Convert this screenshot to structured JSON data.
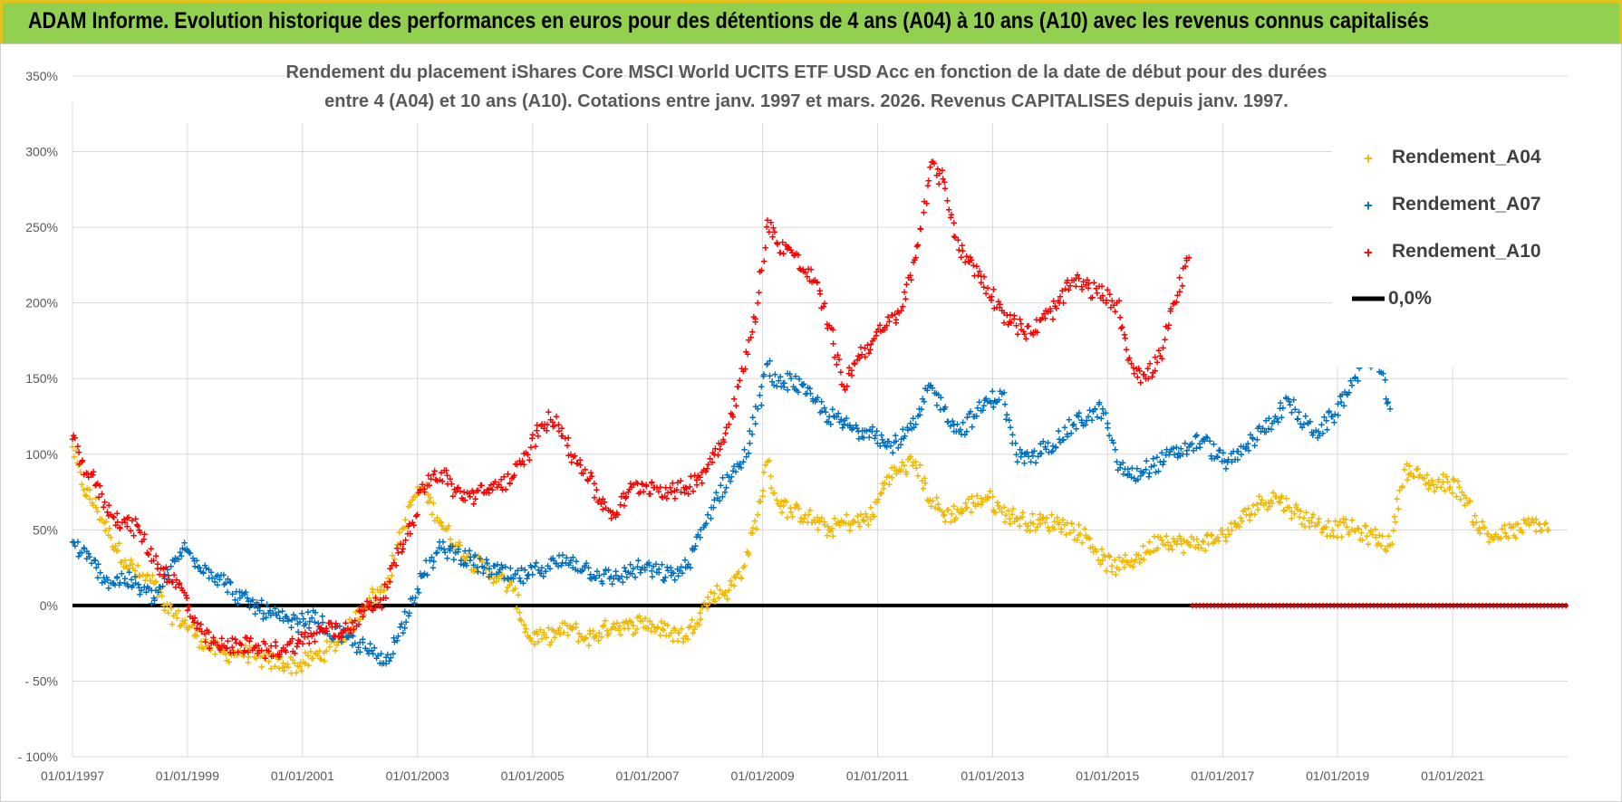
{
  "banner": {
    "text": "ADAM Informe. Evolution historique des performances en euros pour des détentions de 4 ans (A04) à 10 ans (A10) avec les revenus connus capitalisés",
    "background": "#92d050",
    "border": "#e7c21c"
  },
  "chart_data": {
    "type": "scatter",
    "title_line1": "Rendement du placement iShares Core MSCI World UCITS ETF USD Acc en fonction de la date de début pour des durées",
    "title_line2": "entre 4 (A04) et 10 ans (A10). Cotations entre janv. 1997 et mars. 2026. Revenus CAPITALISES depuis janv. 1997.",
    "xlabel": "",
    "ylabel": "",
    "x_range": [
      "01/01/1997",
      "01/01/2023"
    ],
    "x_ticks": [
      "01/01/1997",
      "01/01/1999",
      "01/01/2001",
      "01/01/2003",
      "01/01/2005",
      "01/01/2007",
      "01/01/2009",
      "01/01/2011",
      "01/01/2013",
      "01/01/2015",
      "01/01/2017",
      "01/01/2019",
      "01/01/2021"
    ],
    "ylim": [
      -100,
      350
    ],
    "y_ticks": [
      "350%",
      "300%",
      "250%",
      "200%",
      "150%",
      "100%",
      "50%",
      "0%",
      "- 50%",
      "- 100%"
    ],
    "grid": true,
    "legend_position": "top-right",
    "series": [
      {
        "name": "Rendement_A04",
        "color": "#f2b800",
        "marker": "+",
        "points": [
          [
            "1997-01",
            105
          ],
          [
            "1997-03",
            80
          ],
          [
            "1997-06",
            65
          ],
          [
            "1997-09",
            45
          ],
          [
            "1997-12",
            30
          ],
          [
            "1998-03",
            20
          ],
          [
            "1998-06",
            15
          ],
          [
            "1998-09",
            -5
          ],
          [
            "1998-12",
            -10
          ],
          [
            "1999-03",
            -20
          ],
          [
            "1999-06",
            -28
          ],
          [
            "1999-09",
            -32
          ],
          [
            "1999-12",
            -30
          ],
          [
            "2000-03",
            -34
          ],
          [
            "2000-06",
            -37
          ],
          [
            "2000-09",
            -38
          ],
          [
            "2000-12",
            -40
          ],
          [
            "2001-03",
            -35
          ],
          [
            "2001-06",
            -30
          ],
          [
            "2001-09",
            -22
          ],
          [
            "2001-12",
            -10
          ],
          [
            "2002-03",
            5
          ],
          [
            "2002-06",
            10
          ],
          [
            "2002-09",
            40
          ],
          [
            "2002-12",
            70
          ],
          [
            "2003-02",
            78
          ],
          [
            "2003-06",
            55
          ],
          [
            "2003-09",
            40
          ],
          [
            "2003-12",
            30
          ],
          [
            "2004-03",
            25
          ],
          [
            "2004-06",
            18
          ],
          [
            "2004-09",
            10
          ],
          [
            "2004-12",
            -20
          ],
          [
            "2005-03",
            -22
          ],
          [
            "2005-06",
            -18
          ],
          [
            "2005-09",
            -15
          ],
          [
            "2005-12",
            -22
          ],
          [
            "2006-03",
            -18
          ],
          [
            "2006-06",
            -12
          ],
          [
            "2006-09",
            -15
          ],
          [
            "2006-12",
            -10
          ],
          [
            "2007-03",
            -15
          ],
          [
            "2007-06",
            -18
          ],
          [
            "2007-09",
            -20
          ],
          [
            "2007-12",
            -5
          ],
          [
            "2008-03",
            8
          ],
          [
            "2008-06",
            10
          ],
          [
            "2008-09",
            25
          ],
          [
            "2008-12",
            60
          ],
          [
            "2009-02",
            95
          ],
          [
            "2009-04",
            70
          ],
          [
            "2009-07",
            62
          ],
          [
            "2009-10",
            60
          ],
          [
            "2009-12",
            55
          ],
          [
            "2010-03",
            50
          ],
          [
            "2010-06",
            55
          ],
          [
            "2010-09",
            55
          ],
          [
            "2010-12",
            60
          ],
          [
            "2011-03",
            85
          ],
          [
            "2011-06",
            90
          ],
          [
            "2011-09",
            95
          ],
          [
            "2011-12",
            70
          ],
          [
            "2012-03",
            60
          ],
          [
            "2012-06",
            62
          ],
          [
            "2012-09",
            68
          ],
          [
            "2012-12",
            72
          ],
          [
            "2013-03",
            62
          ],
          [
            "2013-06",
            58
          ],
          [
            "2013-09",
            55
          ],
          [
            "2013-12",
            55
          ],
          [
            "2014-03",
            55
          ],
          [
            "2014-06",
            50
          ],
          [
            "2014-09",
            45
          ],
          [
            "2014-12",
            30
          ],
          [
            "2015-03",
            25
          ],
          [
            "2015-06",
            30
          ],
          [
            "2015-09",
            35
          ],
          [
            "2015-12",
            45
          ],
          [
            "2016-03",
            42
          ],
          [
            "2016-06",
            40
          ],
          [
            "2016-09",
            42
          ],
          [
            "2016-12",
            45
          ],
          [
            "2017-03",
            50
          ],
          [
            "2017-06",
            60
          ],
          [
            "2017-09",
            68
          ],
          [
            "2017-12",
            72
          ],
          [
            "2018-03",
            65
          ],
          [
            "2018-06",
            58
          ],
          [
            "2018-09",
            55
          ],
          [
            "2018-12",
            50
          ],
          [
            "2019-03",
            52
          ],
          [
            "2019-06",
            48
          ],
          [
            "2019-09",
            45
          ],
          [
            "2019-12",
            40
          ],
          [
            "2020-03",
            90
          ],
          [
            "2020-06",
            85
          ],
          [
            "2020-09",
            80
          ],
          [
            "2020-12",
            82
          ],
          [
            "2021-03",
            75
          ],
          [
            "2021-06",
            55
          ],
          [
            "2021-09",
            45
          ],
          [
            "2021-12",
            48
          ],
          [
            "2022-03",
            50
          ],
          [
            "2022-06",
            55
          ],
          [
            "2022-09",
            50
          ]
        ]
      },
      {
        "name": "Rendement_A07",
        "color": "#0070c0",
        "marker": "+",
        "points": [
          [
            "1997-01",
            42
          ],
          [
            "1997-03",
            35
          ],
          [
            "1997-06",
            25
          ],
          [
            "1997-09",
            15
          ],
          [
            "1997-12",
            18
          ],
          [
            "1998-03",
            12
          ],
          [
            "1998-06",
            5
          ],
          [
            "1998-09",
            20
          ],
          [
            "1998-12",
            38
          ],
          [
            "1999-03",
            30
          ],
          [
            "1999-06",
            22
          ],
          [
            "1999-09",
            15
          ],
          [
            "1999-12",
            5
          ],
          [
            "2000-03",
            0
          ],
          [
            "2000-06",
            -5
          ],
          [
            "2000-09",
            -10
          ],
          [
            "2000-12",
            -12
          ],
          [
            "2001-03",
            -8
          ],
          [
            "2001-06",
            -15
          ],
          [
            "2001-09",
            -20
          ],
          [
            "2001-12",
            -25
          ],
          [
            "2002-03",
            -30
          ],
          [
            "2002-06",
            -38
          ],
          [
            "2002-09",
            -20
          ],
          [
            "2002-12",
            5
          ],
          [
            "2003-02",
            20
          ],
          [
            "2003-06",
            38
          ],
          [
            "2003-09",
            35
          ],
          [
            "2003-12",
            30
          ],
          [
            "2004-03",
            25
          ],
          [
            "2004-06",
            22
          ],
          [
            "2004-09",
            18
          ],
          [
            "2004-12",
            20
          ],
          [
            "2005-03",
            25
          ],
          [
            "2005-06",
            28
          ],
          [
            "2005-09",
            30
          ],
          [
            "2005-12",
            25
          ],
          [
            "2006-03",
            20
          ],
          [
            "2006-06",
            18
          ],
          [
            "2006-09",
            22
          ],
          [
            "2006-12",
            25
          ],
          [
            "2007-03",
            22
          ],
          [
            "2007-06",
            20
          ],
          [
            "2007-09",
            25
          ],
          [
            "2007-12",
            45
          ],
          [
            "2008-03",
            70
          ],
          [
            "2008-06",
            85
          ],
          [
            "2008-09",
            95
          ],
          [
            "2008-12",
            130
          ],
          [
            "2009-02",
            160
          ],
          [
            "2009-04",
            145
          ],
          [
            "2009-07",
            150
          ],
          [
            "2009-10",
            140
          ],
          [
            "2009-12",
            135
          ],
          [
            "2010-03",
            125
          ],
          [
            "2010-06",
            120
          ],
          [
            "2010-09",
            115
          ],
          [
            "2010-12",
            118
          ],
          [
            "2011-03",
            105
          ],
          [
            "2011-06",
            110
          ],
          [
            "2011-09",
            120
          ],
          [
            "2011-12",
            145
          ],
          [
            "2012-03",
            130
          ],
          [
            "2012-06",
            115
          ],
          [
            "2012-09",
            125
          ],
          [
            "2012-12",
            135
          ],
          [
            "2013-03",
            140
          ],
          [
            "2013-06",
            100
          ],
          [
            "2013-09",
            95
          ],
          [
            "2013-12",
            105
          ],
          [
            "2014-03",
            110
          ],
          [
            "2014-06",
            120
          ],
          [
            "2014-09",
            125
          ],
          [
            "2014-12",
            130
          ],
          [
            "2015-03",
            95
          ],
          [
            "2015-06",
            85
          ],
          [
            "2015-09",
            90
          ],
          [
            "2015-12",
            95
          ],
          [
            "2016-03",
            100
          ],
          [
            "2016-06",
            105
          ],
          [
            "2016-09",
            110
          ],
          [
            "2016-12",
            98
          ],
          [
            "2017-03",
            95
          ],
          [
            "2017-06",
            105
          ],
          [
            "2017-09",
            115
          ],
          [
            "2017-12",
            125
          ],
          [
            "2018-03",
            135
          ],
          [
            "2018-06",
            120
          ],
          [
            "2018-09",
            115
          ],
          [
            "2018-12",
            125
          ],
          [
            "2019-03",
            140
          ],
          [
            "2019-06",
            160
          ],
          [
            "2019-09",
            165
          ],
          [
            "2019-12",
            130
          ]
        ]
      },
      {
        "name": "Rendement_A10",
        "color": "#ff0000",
        "marker": "+",
        "points": [
          [
            "1997-01",
            110
          ],
          [
            "1997-03",
            95
          ],
          [
            "1997-06",
            80
          ],
          [
            "1997-09",
            60
          ],
          [
            "1997-12",
            55
          ],
          [
            "1998-03",
            50
          ],
          [
            "1998-06",
            30
          ],
          [
            "1998-09",
            20
          ],
          [
            "1998-12",
            10
          ],
          [
            "1999-03",
            -15
          ],
          [
            "1999-06",
            -25
          ],
          [
            "1999-09",
            -28
          ],
          [
            "1999-12",
            -25
          ],
          [
            "2000-03",
            -28
          ],
          [
            "2000-06",
            -30
          ],
          [
            "2000-09",
            -28
          ],
          [
            "2000-12",
            -25
          ],
          [
            "2001-03",
            -20
          ],
          [
            "2001-06",
            -15
          ],
          [
            "2001-09",
            -18
          ],
          [
            "2001-12",
            -10
          ],
          [
            "2002-03",
            0
          ],
          [
            "2002-06",
            5
          ],
          [
            "2002-09",
            35
          ],
          [
            "2002-12",
            55
          ],
          [
            "2003-02",
            80
          ],
          [
            "2003-06",
            88
          ],
          [
            "2003-09",
            75
          ],
          [
            "2003-12",
            72
          ],
          [
            "2004-03",
            75
          ],
          [
            "2004-06",
            80
          ],
          [
            "2004-09",
            85
          ],
          [
            "2004-12",
            100
          ],
          [
            "2005-03",
            120
          ],
          [
            "2005-06",
            125
          ],
          [
            "2005-09",
            100
          ],
          [
            "2005-12",
            90
          ],
          [
            "2006-03",
            70
          ],
          [
            "2006-06",
            60
          ],
          [
            "2006-09",
            75
          ],
          [
            "2006-12",
            80
          ],
          [
            "2007-03",
            78
          ],
          [
            "2007-06",
            75
          ],
          [
            "2007-09",
            78
          ],
          [
            "2007-12",
            85
          ],
          [
            "2008-03",
            100
          ],
          [
            "2008-06",
            120
          ],
          [
            "2008-09",
            155
          ],
          [
            "2008-12",
            200
          ],
          [
            "2009-02",
            255
          ],
          [
            "2009-04",
            240
          ],
          [
            "2009-07",
            235
          ],
          [
            "2009-10",
            220
          ],
          [
            "2009-12",
            215
          ],
          [
            "2010-03",
            185
          ],
          [
            "2010-06",
            145
          ],
          [
            "2010-09",
            165
          ],
          [
            "2010-12",
            175
          ],
          [
            "2011-03",
            185
          ],
          [
            "2011-06",
            195
          ],
          [
            "2011-09",
            230
          ],
          [
            "2011-12",
            290
          ],
          [
            "2012-03",
            280
          ],
          [
            "2012-06",
            235
          ],
          [
            "2012-09",
            225
          ],
          [
            "2012-12",
            210
          ],
          [
            "2013-03",
            195
          ],
          [
            "2013-06",
            185
          ],
          [
            "2013-09",
            180
          ],
          [
            "2013-12",
            190
          ],
          [
            "2014-03",
            200
          ],
          [
            "2014-06",
            215
          ],
          [
            "2014-09",
            210
          ],
          [
            "2014-12",
            205
          ],
          [
            "2015-03",
            200
          ],
          [
            "2015-06",
            160
          ],
          [
            "2015-09",
            150
          ],
          [
            "2015-12",
            165
          ],
          [
            "2016-03",
            200
          ],
          [
            "2016-06",
            230
          ]
        ]
      },
      {
        "name": "0,0%",
        "color": "#000000",
        "marker": "line",
        "points": [
          [
            "1997-01",
            0
          ],
          [
            "2023-01",
            0
          ]
        ]
      }
    ]
  }
}
